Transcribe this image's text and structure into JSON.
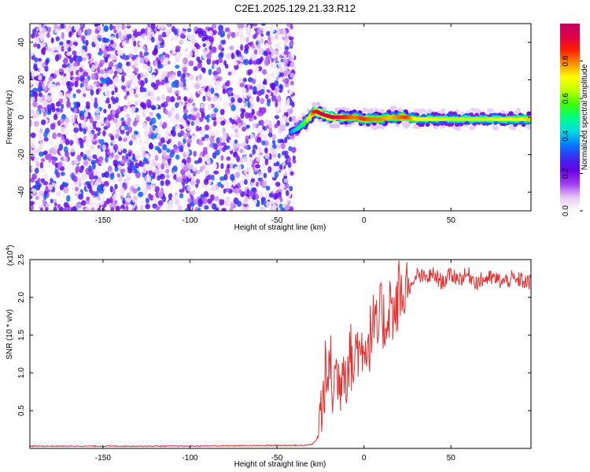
{
  "title": "C2E1.2025.129.21.33.R12",
  "chart_data": [
    {
      "type": "heatmap",
      "xlabel": "Height of straight line (km)",
      "ylabel": "Frequency (Hz)",
      "xlim": [
        -192,
        96
      ],
      "ylim": [
        -50,
        50
      ],
      "xticks": [
        -150,
        -100,
        -50,
        0,
        50
      ],
      "yticks": [
        -40,
        -20,
        0,
        20,
        40
      ],
      "grid": false,
      "colorbar": {
        "label": "Normalized spectral amplitude",
        "range": [
          0,
          1
        ],
        "ticks": [
          "0.0",
          "0.2",
          "0.4",
          "0.6",
          "0.8"
        ],
        "colormap": [
          "#ffffff",
          "#e6c8f5",
          "#a040f0",
          "#6a00e8",
          "#3a2cf0",
          "#0080ff",
          "#00e0e0",
          "#00ff80",
          "#40ff00",
          "#c0ff00",
          "#ffff00",
          "#ff9000",
          "#ff2000",
          "#e0004a",
          "#c00060"
        ]
      },
      "noise_region_x": [
        -192,
        -40
      ],
      "noise_amplitude": [
        0.02,
        0.35
      ],
      "signal_track": {
        "x": [
          -42,
          -38,
          -34,
          -31,
          -29,
          -27,
          -25,
          -22,
          -18,
          -14,
          -10,
          -5,
          0,
          5,
          10,
          15,
          20,
          25,
          30,
          40,
          50,
          60,
          70,
          80,
          90,
          95
        ],
        "frequency": [
          -8,
          -6,
          -3,
          0,
          3,
          3,
          2,
          1,
          0,
          0,
          0,
          0,
          -1,
          -1,
          -1,
          0,
          0,
          0,
          -1,
          -1,
          -1,
          -1,
          -1,
          -1,
          -1,
          -1
        ],
        "peak_amplitude": [
          0.35,
          0.45,
          0.55,
          0.7,
          0.85,
          0.9,
          0.95,
          0.97,
          0.95,
          0.9,
          0.85,
          0.8,
          0.85,
          0.8,
          0.8,
          0.75,
          0.8,
          0.85,
          0.7,
          0.7,
          0.65,
          0.65,
          0.65,
          0.7,
          0.7,
          0.75
        ]
      }
    },
    {
      "type": "line",
      "xlabel": "Height of straight line (km)",
      "ylabel": "SNR (10 * v/v)",
      "y_multiplier": "(x10",
      "y_multiplier_exp": "4",
      "y_multiplier_close": ")",
      "xlim": [
        -192,
        96
      ],
      "ylim": [
        0,
        2.5
      ],
      "xticks": [
        -150,
        -100,
        -50,
        0,
        50
      ],
      "yticks": [
        "0.5",
        "1.0",
        "1.5",
        "2.0",
        "2.5"
      ],
      "color": "#e03030",
      "series": [
        {
          "x": [
            -192,
            -100,
            -50,
            -35,
            -30,
            -27,
            -25,
            -24,
            -23,
            -22,
            -21,
            -20,
            -18,
            -16,
            -14,
            -12,
            -10,
            -8,
            -6,
            -4,
            -2,
            0,
            2,
            5,
            8,
            10,
            12,
            15,
            18,
            20,
            22,
            25,
            28,
            30,
            35,
            40,
            45,
            50,
            55,
            60,
            65,
            70,
            75,
            80,
            85,
            88,
            90,
            92,
            96
          ],
          "y": [
            0.03,
            0.03,
            0.04,
            0.04,
            0.05,
            0.12,
            0.55,
            0.45,
            0.8,
            1.05,
            0.55,
            1.35,
            0.75,
            1.05,
            0.8,
            1.2,
            1.0,
            1.3,
            1.0,
            1.45,
            1.2,
            1.5,
            1.3,
            1.65,
            1.5,
            1.85,
            1.6,
            1.95,
            1.7,
            2.1,
            1.95,
            2.2,
            2.1,
            2.3,
            2.25,
            2.3,
            2.2,
            2.3,
            2.25,
            2.3,
            2.2,
            2.25,
            2.25,
            2.2,
            2.25,
            2.2,
            2.25,
            2.2,
            2.2
          ]
        }
      ]
    }
  ]
}
